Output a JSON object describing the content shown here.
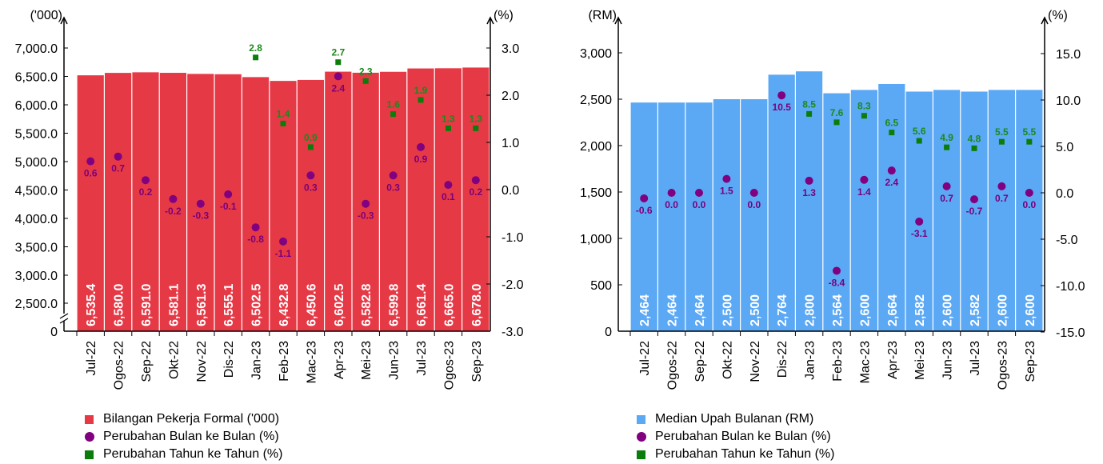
{
  "chart_data": [
    {
      "type": "bar",
      "title": "",
      "left_axis_unit": "('000)",
      "right_axis_unit": "(%)",
      "categories": [
        "Jul-22",
        "Ogos-22",
        "Sep-22",
        "Okt-22",
        "Nov-22",
        "Dis-22",
        "Jan-23",
        "Feb-23",
        "Mac-23",
        "Apr-23",
        "Mei-23",
        "Jun-23",
        "Jul-23",
        "Ogos-23",
        "Sep-23"
      ],
      "left_ticks": [
        "0",
        "2,500.0",
        "3,000.0",
        "3,500.0",
        "4,000.0",
        "4,500.0",
        "5,000.0",
        "5,500.0",
        "6,000.0",
        "6,500.0",
        "7,000.0"
      ],
      "right_ticks": [
        "-3.0",
        "-2.0",
        "-1.0",
        "0.0",
        "1.0",
        "2.0",
        "3.0"
      ],
      "ylim_left": [
        2250,
        7500
      ],
      "ylim_right": [
        -3.0,
        3.0
      ],
      "axis_break": true,
      "colors": {
        "bar": "#e63946",
        "mom": "#800080",
        "yoy": "#0a7d0a"
      },
      "series": [
        {
          "name": "Bilangan Pekerja Formal ('000)",
          "kind": "bar",
          "axis": "left",
          "values": [
            6535.4,
            6580.0,
            6591.0,
            6581.1,
            6561.3,
            6555.1,
            6502.5,
            6432.8,
            6450.6,
            6602.5,
            6582.8,
            6599.8,
            6661.4,
            6665.0,
            6678.0
          ],
          "labels": [
            "6,535.4",
            "6,580.0",
            "6,591.0",
            "6,581.1",
            "6,561.3",
            "6,555.1",
            "6,502.5",
            "6,432.8",
            "6,450.6",
            "6,602.5",
            "6,582.8",
            "6,599.8",
            "6,661.4",
            "6,665.0",
            "6,678.0"
          ]
        },
        {
          "name": "Perubahan Bulan ke Bulan (%)",
          "kind": "dot",
          "axis": "right",
          "values": [
            0.6,
            0.7,
            0.2,
            -0.2,
            -0.3,
            -0.1,
            -0.8,
            -1.1,
            0.3,
            2.4,
            -0.3,
            0.3,
            0.9,
            0.1,
            0.2
          ],
          "labels": [
            "0.6",
            "0.7",
            "0.2",
            "-0.2",
            "-0.3",
            "-0.1",
            "-0.8",
            "-1.1",
            "0.3",
            "2.4",
            "-0.3",
            "0.3",
            "0.9",
            "0.1",
            "0.2"
          ]
        },
        {
          "name": "Perubahan Tahun ke Tahun (%)",
          "kind": "square",
          "axis": "right",
          "values": [
            null,
            null,
            null,
            null,
            null,
            null,
            2.8,
            1.4,
            0.9,
            2.7,
            2.3,
            1.6,
            1.9,
            1.3,
            1.3
          ],
          "labels": [
            "",
            "",
            "",
            "",
            "",
            "",
            "2.8",
            "1.4",
            "0.9",
            "2.7",
            "2.3",
            "1.6",
            "1.9",
            "1.3",
            "1.3"
          ]
        }
      ],
      "legend": [
        "Bilangan Pekerja Formal ('000)",
        "Perubahan Bulan ke Bulan (%)",
        "Perubahan Tahun ke Tahun (%)"
      ]
    },
    {
      "type": "bar",
      "title": "",
      "left_axis_unit": "(RM)",
      "right_axis_unit": "(%)",
      "categories": [
        "Jul-22",
        "Ogos-22",
        "Sep-22",
        "Okt-22",
        "Nov-22",
        "Dis-22",
        "Jan-23",
        "Feb-23",
        "Mac-23",
        "Apr-23",
        "Mei-23",
        "Jun-23",
        "Jul-23",
        "Ogos-23",
        "Sep-23"
      ],
      "left_ticks": [
        "0",
        "500",
        "1,000",
        "1,500",
        "2,000",
        "2,500",
        "3,000"
      ],
      "right_ticks": [
        "-15.0",
        "-10.0",
        "-5.0",
        "0.0",
        "5.0",
        "10.0",
        "15.0"
      ],
      "ylim_left": [
        0,
        3500
      ],
      "ylim_right": [
        -15.0,
        15.0
      ],
      "colors": {
        "bar": "#5ba8f5",
        "mom": "#800080",
        "yoy": "#0a7d0a"
      },
      "series": [
        {
          "name": "Median Upah Bulanan (RM)",
          "kind": "bar",
          "axis": "left",
          "values": [
            2464,
            2464,
            2464,
            2500,
            2500,
            2764,
            2800,
            2564,
            2600,
            2664,
            2582,
            2600,
            2582,
            2600,
            2600
          ],
          "labels": [
            "2,464",
            "2,464",
            "2,464",
            "2,500",
            "2,500",
            "2,764",
            "2,800",
            "2,564",
            "2,600",
            "2,664",
            "2,582",
            "2,600",
            "2,582",
            "2,600",
            "2,600"
          ]
        },
        {
          "name": "Perubahan Bulan ke Bulan (%)",
          "kind": "dot",
          "axis": "right",
          "values": [
            -0.6,
            0.0,
            0.0,
            1.5,
            0.0,
            10.5,
            1.3,
            -8.4,
            1.4,
            2.4,
            -3.1,
            0.7,
            -0.7,
            0.7,
            0.0
          ],
          "labels": [
            "-0.6",
            "0.0",
            "0.0",
            "1.5",
            "0.0",
            "10.5",
            "1.3",
            "-8.4",
            "1.4",
            "2.4",
            "-3.1",
            "0.7",
            "-0.7",
            "0.7",
            "0.0"
          ]
        },
        {
          "name": "Perubahan Tahun ke Tahun (%)",
          "kind": "square",
          "axis": "right",
          "values": [
            null,
            null,
            null,
            null,
            null,
            null,
            8.5,
            7.6,
            8.3,
            6.5,
            5.6,
            4.9,
            4.8,
            5.5,
            5.5
          ],
          "labels": [
            "",
            "",
            "",
            "",
            "",
            "",
            "8.5",
            "7.6",
            "8.3",
            "6.5",
            "5.6",
            "4.9",
            "4.8",
            "5.5",
            "5.5"
          ]
        }
      ],
      "legend": [
        "Median Upah Bulanan (RM)",
        "Perubahan Bulan ke Bulan (%)",
        "Perubahan Tahun ke Tahun (%)"
      ]
    }
  ]
}
